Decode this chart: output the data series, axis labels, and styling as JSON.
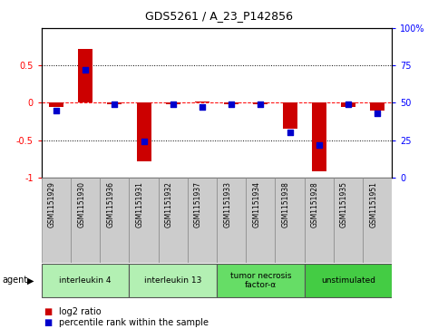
{
  "title": "GDS5261 / A_23_P142856",
  "samples": [
    "GSM1151929",
    "GSM1151930",
    "GSM1151936",
    "GSM1151931",
    "GSM1151932",
    "GSM1151937",
    "GSM1151933",
    "GSM1151934",
    "GSM1151938",
    "GSM1151928",
    "GSM1151935",
    "GSM1151951"
  ],
  "log2_ratio": [
    -0.05,
    0.72,
    -0.02,
    -0.78,
    -0.02,
    0.02,
    -0.02,
    -0.02,
    -0.35,
    -0.92,
    -0.05,
    -0.1
  ],
  "percentile_rank": [
    45,
    72,
    49,
    24,
    49,
    47,
    49,
    49,
    30,
    22,
    49,
    43
  ],
  "groups": [
    {
      "label": "interleukin 4",
      "start": 0,
      "end": 3,
      "color": "#b3f0b3"
    },
    {
      "label": "interleukin 13",
      "start": 3,
      "end": 6,
      "color": "#b3f0b3"
    },
    {
      "label": "tumor necrosis\nfactor-α",
      "start": 6,
      "end": 9,
      "color": "#66dd66"
    },
    {
      "label": "unstimulated",
      "start": 9,
      "end": 12,
      "color": "#44cc44"
    }
  ],
  "ylim": [
    -1,
    1
  ],
  "yticks_left": [
    -1,
    -0.5,
    0,
    0.5
  ],
  "ytick_labels_left": [
    "-1",
    "-0.5",
    "0",
    "0.5"
  ],
  "yticks_right": [
    0,
    25,
    50,
    75,
    100
  ],
  "ytick_labels_right": [
    "0",
    "25",
    "50",
    "75",
    "100%"
  ],
  "bar_width": 0.5,
  "dot_size": 14,
  "bar_color": "#cc0000",
  "dot_color": "#0000cc",
  "sample_box_color": "#cccccc",
  "agent_label": "agent",
  "legend_items": [
    {
      "color": "#cc0000",
      "label": "log2 ratio"
    },
    {
      "color": "#0000cc",
      "label": "percentile rank within the sample"
    }
  ],
  "bg_color": "#ffffff"
}
